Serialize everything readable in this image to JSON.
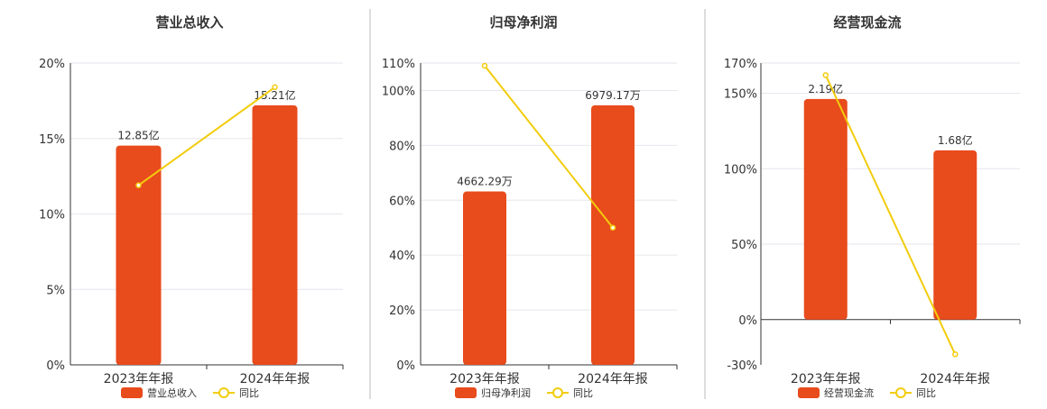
{
  "colors": {
    "bar": "#E84B1C",
    "line": "#F2CC0C",
    "grid": "#E6E6EE",
    "axis": "#333333",
    "divider": "#BBBBBB",
    "text": "#333333"
  },
  "legend": {
    "bar_icon": "bar-swatch",
    "line_icon": "line-circle-marker",
    "line_label": "同比"
  },
  "chart_data": [
    {
      "type": "bar",
      "title": "营业总收入",
      "categories": [
        "2023年年报",
        "2024年年报"
      ],
      "bar_series": {
        "name": "营业总收入",
        "labels": [
          "12.85亿",
          "15.21亿"
        ],
        "values": [
          12.85,
          15.21
        ],
        "unit": "亿"
      },
      "line_series": {
        "name": "同比",
        "values": [
          11.9,
          18.4
        ]
      },
      "y_axis": {
        "min": 0,
        "max": 20,
        "ticks": [
          "20%",
          "15%",
          "10%",
          "5%",
          "0%"
        ],
        "tick_values": [
          20,
          15,
          10,
          5,
          0
        ]
      },
      "grid": true,
      "legend_position": "bottom"
    },
    {
      "type": "bar",
      "title": "归母净利润",
      "categories": [
        "2023年年报",
        "2024年年报"
      ],
      "bar_series": {
        "name": "归母净利润",
        "labels": [
          "4662.29万",
          "6979.17万"
        ],
        "values": [
          4662.29,
          6979.17
        ],
        "unit": "万"
      },
      "line_series": {
        "name": "同比",
        "values": [
          109,
          50
        ]
      },
      "y_axis": {
        "min": 0,
        "max": 110,
        "ticks": [
          "110%",
          "100%",
          "80%",
          "60%",
          "40%",
          "20%",
          "0%"
        ],
        "tick_values": [
          110,
          100,
          80,
          60,
          40,
          20,
          0
        ]
      },
      "grid": true,
      "legend_position": "bottom"
    },
    {
      "type": "bar",
      "title": "经营现金流",
      "categories": [
        "2023年年报",
        "2024年年报"
      ],
      "bar_series": {
        "name": "经营现金流",
        "labels": [
          "2.19亿",
          "1.68亿"
        ],
        "values": [
          2.19,
          1.68
        ],
        "unit": "亿"
      },
      "line_series": {
        "name": "同比",
        "values": [
          162,
          -23
        ]
      },
      "y_axis": {
        "min": -30,
        "max": 170,
        "ticks": [
          "170%",
          "150%",
          "100%",
          "50%",
          "0%",
          "-30%"
        ],
        "tick_values": [
          170,
          150,
          100,
          50,
          0,
          -30
        ]
      },
      "grid": true,
      "legend_position": "bottom"
    }
  ]
}
